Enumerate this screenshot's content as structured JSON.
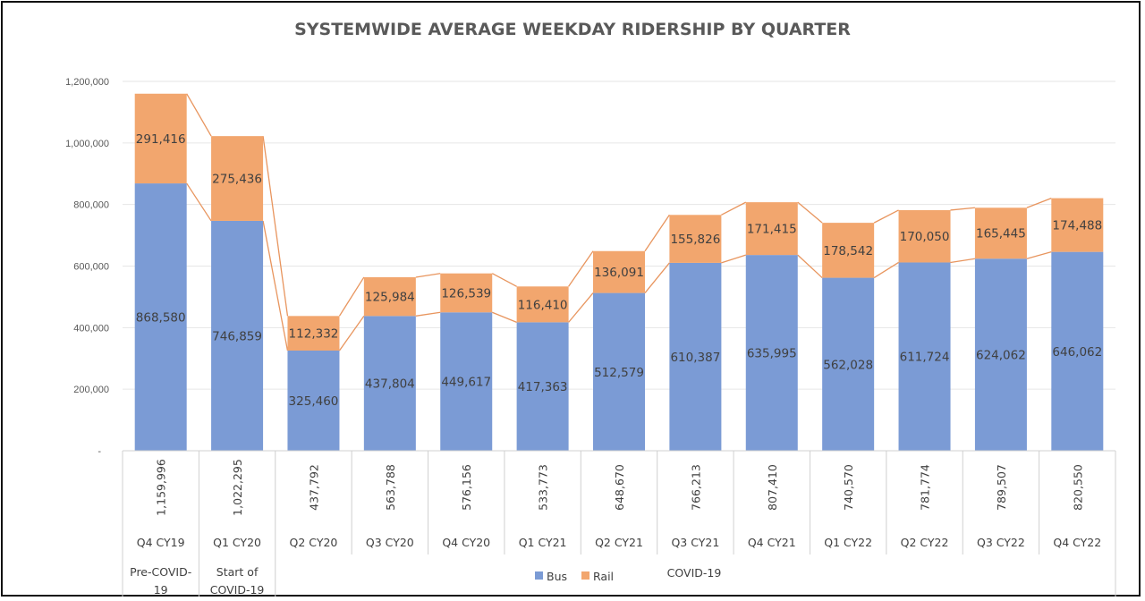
{
  "chart_data": {
    "type": "bar",
    "stacked": true,
    "title": "SYSTEMWIDE AVERAGE WEEKDAY RIDERSHIP BY QUARTER",
    "categories": [
      "Q4 CY19",
      "Q1 CY20",
      "Q2 CY20",
      "Q3 CY20",
      "Q4 CY20",
      "Q1 CY21",
      "Q2 CY21",
      "Q3 CY21",
      "Q4 CY21",
      "Q1 CY22",
      "Q2 CY22",
      "Q3 CY22",
      "Q4 CY22"
    ],
    "totals": [
      "1,159,996",
      "1,022,295",
      "437,792",
      "563,788",
      "576,156",
      "533,773",
      "648,670",
      "766,213",
      "807,410",
      "740,570",
      "781,774",
      "789,507",
      "820,550"
    ],
    "groups": [
      {
        "label": "Pre-COVID-19",
        "span": 1
      },
      {
        "label": "Start of COVID-19",
        "span": 1
      },
      {
        "label": "COVID-19",
        "span": 11
      }
    ],
    "series": [
      {
        "name": "Bus",
        "color": "#7b9bd5",
        "values": [
          868580,
          746859,
          325460,
          437804,
          449617,
          417363,
          512579,
          610387,
          635995,
          562028,
          611724,
          624062,
          646062
        ]
      },
      {
        "name": "Rail",
        "color": "#f2a66e",
        "values": [
          291416,
          275436,
          112332,
          125984,
          126539,
          116410,
          136091,
          155826,
          171415,
          178542,
          170050,
          165445,
          174488
        ]
      }
    ],
    "series_line_color": "#e8955e",
    "yticks": [
      "-",
      "200,000",
      "400,000",
      "600,000",
      "800,000",
      "1,000,000",
      "1,200,000"
    ],
    "ylim": [
      0,
      1200000
    ],
    "grid": true,
    "legend": "bottom"
  }
}
